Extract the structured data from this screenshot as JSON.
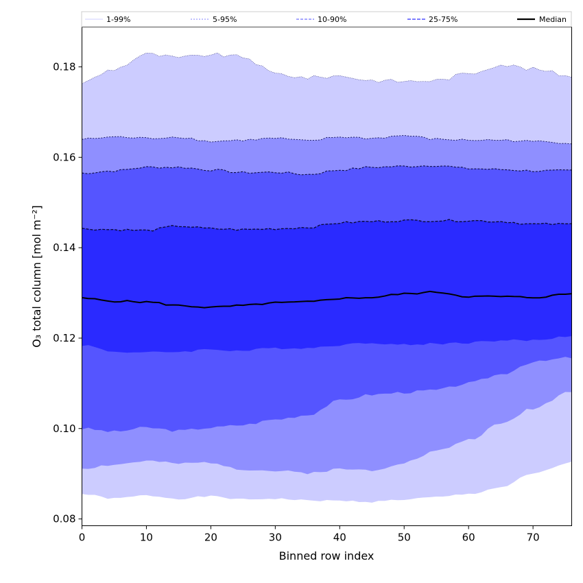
{
  "chart_data": {
    "type": "area",
    "xlabel": "Binned row index",
    "ylabel": "O₃ total column [mol m⁻²]",
    "xlim": [
      0,
      76
    ],
    "ylim": [
      0.0785,
      0.1888
    ],
    "xticks": [
      0,
      10,
      20,
      30,
      40,
      50,
      60,
      70
    ],
    "yticks": [
      0.08,
      0.1,
      0.12,
      0.14,
      0.16,
      0.18
    ],
    "ytick_labels": [
      "0.08",
      "0.10",
      "0.12",
      "0.14",
      "0.16",
      "0.18"
    ],
    "legend": {
      "placement": "top",
      "entries": [
        "1-99%",
        "5-95%",
        "10-90%",
        "25-75%",
        "Median"
      ]
    },
    "colors": {
      "band_1_99": "#ccccff",
      "band_5_95": "#8f8fff",
      "band_10_90": "#5555ff",
      "band_25_75": "#2a2aff",
      "median": "#000000"
    },
    "x_anchor": [
      0,
      5,
      10,
      15,
      20,
      25,
      30,
      35,
      40,
      45,
      50,
      55,
      60,
      65,
      70,
      76
    ],
    "p01": [
      0.0855,
      0.0845,
      0.0852,
      0.0845,
      0.085,
      0.0843,
      0.0845,
      0.0841,
      0.084,
      0.0838,
      0.0843,
      0.0848,
      0.0855,
      0.087,
      0.09,
      0.0925
    ],
    "p05": [
      0.0912,
      0.092,
      0.0928,
      0.0922,
      0.0925,
      0.091,
      0.0906,
      0.0902,
      0.091,
      0.0908,
      0.0925,
      0.095,
      0.0975,
      0.101,
      0.1045,
      0.1083
    ],
    "p10": [
      0.1,
      0.0993,
      0.1002,
      0.0995,
      0.1002,
      0.1008,
      0.102,
      0.103,
      0.1062,
      0.1075,
      0.108,
      0.1085,
      0.11,
      0.112,
      0.1147,
      0.1157
    ],
    "p25": [
      0.1185,
      0.117,
      0.1168,
      0.117,
      0.1175,
      0.1172,
      0.1178,
      0.1178,
      0.1185,
      0.119,
      0.1185,
      0.1188,
      0.119,
      0.1195,
      0.1195,
      0.1205
    ],
    "median": [
      0.1288,
      0.1282,
      0.128,
      0.1272,
      0.1268,
      0.1272,
      0.1278,
      0.128,
      0.1288,
      0.129,
      0.1298,
      0.1302,
      0.1292,
      0.1292,
      0.129,
      0.1298
    ],
    "p75": [
      0.1442,
      0.144,
      0.1438,
      0.1448,
      0.1442,
      0.144,
      0.1442,
      0.1445,
      0.1455,
      0.1458,
      0.146,
      0.146,
      0.146,
      0.1458,
      0.1452,
      0.1452
    ],
    "p90": [
      0.1565,
      0.157,
      0.1578,
      0.1578,
      0.1572,
      0.1566,
      0.1567,
      0.1562,
      0.1572,
      0.1578,
      0.158,
      0.1582,
      0.1575,
      0.1573,
      0.157,
      0.157
    ],
    "p95": [
      0.164,
      0.1645,
      0.1642,
      0.1645,
      0.1635,
      0.1638,
      0.1642,
      0.1636,
      0.1645,
      0.1642,
      0.1648,
      0.164,
      0.1638,
      0.1638,
      0.1635,
      0.1632
    ],
    "p99": [
      0.1765,
      0.1795,
      0.1828,
      0.182,
      0.1827,
      0.1822,
      0.1785,
      0.1776,
      0.178,
      0.177,
      0.1768,
      0.177,
      0.1785,
      0.1805,
      0.1795,
      0.178
    ]
  }
}
